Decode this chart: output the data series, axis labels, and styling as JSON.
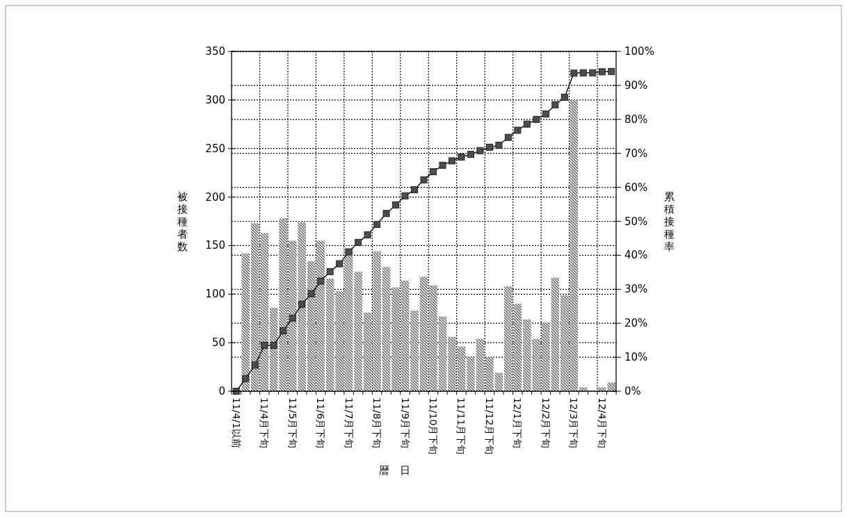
{
  "chart_data": {
    "type": "bar",
    "xlabel": "暦　日",
    "ylabel": "被接種者数",
    "y2label": "累積接種率",
    "categories": [
      "11/4/1以前",
      null,
      null,
      "11/4月下旬",
      null,
      null,
      "11/5月下旬",
      null,
      null,
      "11/6月下旬",
      null,
      null,
      "11/7月下旬",
      null,
      null,
      "11/8月下旬",
      null,
      null,
      "11/9月下旬",
      null,
      null,
      "11/10月下旬",
      null,
      null,
      "11/11月下旬",
      null,
      null,
      "11/12月下旬",
      null,
      null,
      "12/1月下旬",
      null,
      null,
      "12/2月下旬",
      null,
      null,
      "12/3月下旬",
      null,
      null,
      "12/4月下旬",
      null
    ],
    "series": [
      {
        "color": "#555555",
        "values": [
          null,
          142,
          173,
          163,
          86,
          178,
          155,
          174,
          134,
          155,
          116,
          103,
          147,
          123,
          81,
          144,
          128,
          107,
          114,
          83,
          118,
          109,
          77,
          56,
          46,
          36,
          54,
          35,
          19,
          108,
          90,
          74,
          54,
          71,
          117,
          99,
          300,
          4,
          0,
          4,
          9
        ]
      },
      {
        "type": "line",
        "axis": "y2",
        "color": "#4d4d4d",
        "marker": "square",
        "values": [
          0,
          3.7,
          7.7,
          13.5,
          13.5,
          17.8,
          21.5,
          25.6,
          28.7,
          32.4,
          35.2,
          37.5,
          41.0,
          43.8,
          46.0,
          49.1,
          52.3,
          54.8,
          57.5,
          59.3,
          62.2,
          64.6,
          66.5,
          67.8,
          68.9,
          69.7,
          70.8,
          71.8,
          72.4,
          74.7,
          76.8,
          78.6,
          80.0,
          81.6,
          84.3,
          86.5,
          93.6,
          93.7,
          93.7,
          94.0,
          94.1
        ]
      }
    ],
    "ylim": [
      0,
      350
    ],
    "yticks": [
      0,
      50,
      100,
      150,
      200,
      250,
      300,
      350
    ],
    "y2lim": [
      0,
      100
    ],
    "y2ticks": [
      {
        "value": 0,
        "label": "0%"
      },
      {
        "value": 10,
        "label": "10%"
      },
      {
        "value": 20,
        "label": "20%"
      },
      {
        "value": 30,
        "label": "30%"
      },
      {
        "value": 40,
        "label": "40%"
      },
      {
        "value": 50,
        "label": "50%"
      },
      {
        "value": 60,
        "label": "60%"
      },
      {
        "value": 70,
        "label": "70%"
      },
      {
        "value": 80,
        "label": "80%"
      },
      {
        "value": 90,
        "label": "90%"
      },
      {
        "value": 100,
        "label": "100%"
      }
    ],
    "grid": true
  }
}
